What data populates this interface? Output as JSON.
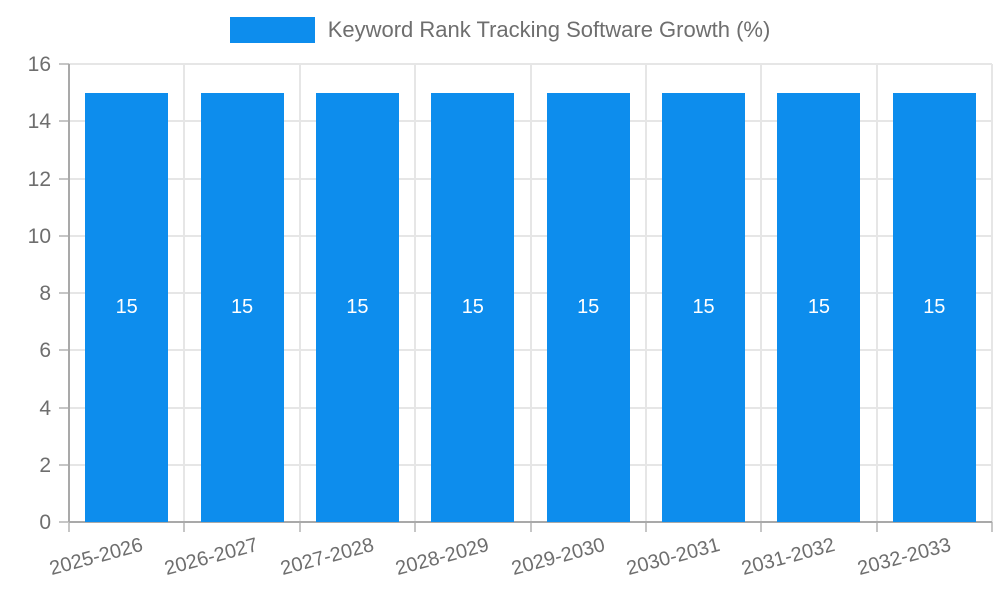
{
  "legend": {
    "label": "Keyword Rank Tracking Software Growth (%)",
    "swatch_color": "#0d8ded"
  },
  "chart_data": {
    "type": "bar",
    "title": "Keyword Rank Tracking Software Growth (%)",
    "series_name": "Keyword Rank Tracking Software Growth (%)",
    "categories": [
      "2025-2026",
      "2026-2027",
      "2027-2028",
      "2028-2029",
      "2029-2030",
      "2030-2031",
      "2031-2032",
      "2032-2033"
    ],
    "values": [
      15,
      15,
      15,
      15,
      15,
      15,
      15,
      15
    ],
    "bar_labels": [
      "15",
      "15",
      "15",
      "15",
      "15",
      "15",
      "15",
      "15"
    ],
    "xlabel": "",
    "ylabel": "",
    "ylim": [
      0,
      16
    ],
    "yticks": [
      0,
      2,
      4,
      6,
      8,
      10,
      12,
      14,
      16
    ],
    "grid": true,
    "legend_position": "top",
    "x_label_rotation_deg": -15,
    "bar_color": "#0d8ded",
    "bar_label_color": "#ffffff",
    "grid_color": "#e6e6e6",
    "axis_color": "#a9a9a9",
    "tick_color": "#c6c6c6",
    "text_color": "#6e6e6e"
  }
}
